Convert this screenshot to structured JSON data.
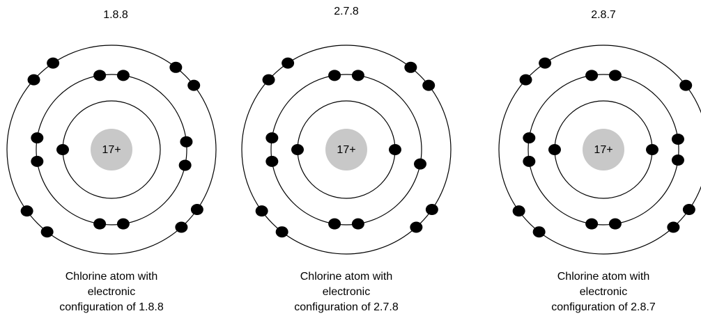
{
  "atoms": [
    {
      "title": "1.8.8",
      "nucleus": "17+",
      "caption": [
        "Chlorine atom with",
        "electronic",
        "configuration of 1.8.8"
      ]
    },
    {
      "title": "2.7.8",
      "nucleus": "17+",
      "caption": [
        "Chlorine atom with",
        "electronic",
        "configuration of 2.7.8"
      ]
    },
    {
      "title": "2.8.7",
      "nucleus": "17+",
      "caption": [
        "Chlorine atom with",
        "electronic",
        "configuration of 2.8.7"
      ]
    }
  ]
}
